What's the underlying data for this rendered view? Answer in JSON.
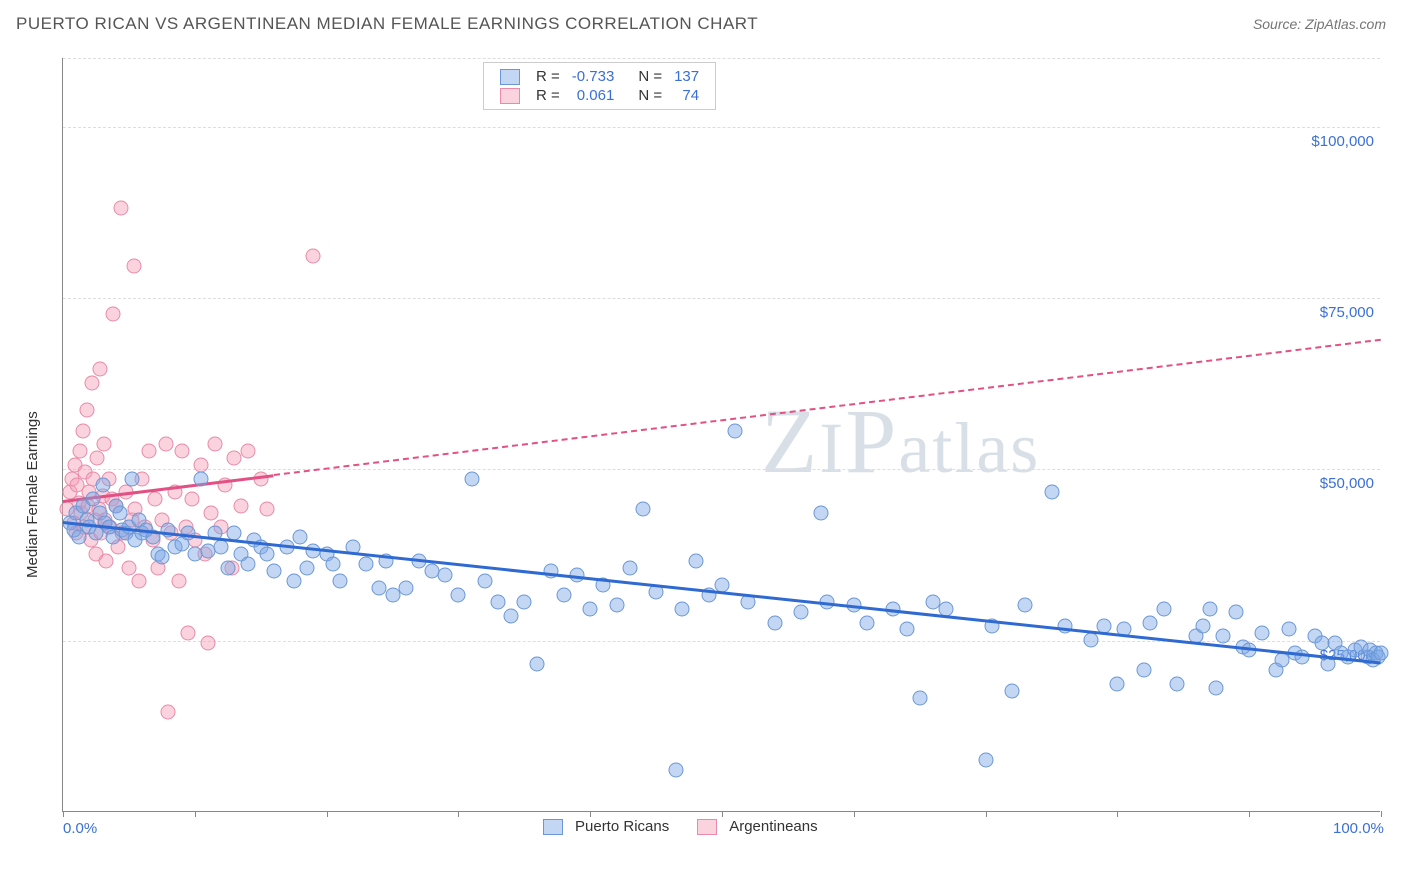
{
  "header": {
    "title": "PUERTO RICAN VS ARGENTINEAN MEDIAN FEMALE EARNINGS CORRELATION CHART",
    "source": "Source: ZipAtlas.com"
  },
  "watermark": {
    "text_parts": [
      "Z",
      "I",
      "P",
      "atlas"
    ]
  },
  "chart": {
    "type": "scatter",
    "y_axis_label": "Median Female Earnings",
    "xlim": [
      0,
      100
    ],
    "ylim": [
      0,
      110000
    ],
    "x_ticks": [
      0,
      10,
      20,
      30,
      40,
      50,
      60,
      70,
      80,
      90,
      100
    ],
    "x_tick_labels": {
      "0": "0.0%",
      "100": "100.0%"
    },
    "y_gridlines": [
      25000,
      50000,
      75000,
      100000,
      110000
    ],
    "y_tick_labels": {
      "25000": "$25,000",
      "50000": "$50,000",
      "75000": "$75,000",
      "100000": "$100,000"
    },
    "background_color": "#ffffff",
    "grid_color": "#dddddd",
    "axis_color": "#888888",
    "marker_radius": 7.5,
    "series": [
      {
        "name": "Puerto Ricans",
        "fill_color": "rgba(123, 167, 230, 0.45)",
        "stroke_color": "#6b97d4",
        "trend_color": "#2e6ad1",
        "R": "-0.733",
        "N": "137",
        "trend": {
          "x1": 0,
          "y1": 42500,
          "x2": 100,
          "y2": 22000,
          "solid_until_x": 100
        },
        "points": [
          [
            0.5,
            42000
          ],
          [
            0.8,
            41000
          ],
          [
            1.0,
            43500
          ],
          [
            1.2,
            40000
          ],
          [
            1.5,
            44500
          ],
          [
            1.8,
            42500
          ],
          [
            2.0,
            41500
          ],
          [
            2.3,
            45500
          ],
          [
            2.5,
            40500
          ],
          [
            2.8,
            43500
          ],
          [
            3.0,
            47500
          ],
          [
            3.2,
            42000
          ],
          [
            3.5,
            41500
          ],
          [
            3.8,
            40000
          ],
          [
            4.0,
            44500
          ],
          [
            4.3,
            43500
          ],
          [
            4.5,
            41000
          ],
          [
            4.8,
            40500
          ],
          [
            5.0,
            41500
          ],
          [
            5.2,
            48500
          ],
          [
            5.5,
            39500
          ],
          [
            5.8,
            42500
          ],
          [
            6.0,
            40500
          ],
          [
            6.3,
            41000
          ],
          [
            6.8,
            40000
          ],
          [
            7.2,
            37500
          ],
          [
            7.5,
            37000
          ],
          [
            8.0,
            41000
          ],
          [
            8.5,
            38500
          ],
          [
            9.0,
            39000
          ],
          [
            9.5,
            40500
          ],
          [
            10.0,
            37500
          ],
          [
            10.5,
            48500
          ],
          [
            11.0,
            38000
          ],
          [
            11.5,
            40500
          ],
          [
            12.0,
            38500
          ],
          [
            12.5,
            35500
          ],
          [
            13.0,
            40500
          ],
          [
            13.5,
            37500
          ],
          [
            14.0,
            36000
          ],
          [
            14.5,
            39500
          ],
          [
            15.0,
            38500
          ],
          [
            15.5,
            37500
          ],
          [
            16.0,
            35000
          ],
          [
            17.0,
            38500
          ],
          [
            17.5,
            33500
          ],
          [
            18.0,
            40000
          ],
          [
            18.5,
            35500
          ],
          [
            19.0,
            38000
          ],
          [
            20.0,
            37500
          ],
          [
            20.5,
            36000
          ],
          [
            21.0,
            33500
          ],
          [
            22.0,
            38500
          ],
          [
            23.0,
            36000
          ],
          [
            24.0,
            32500
          ],
          [
            24.5,
            36500
          ],
          [
            25.0,
            31500
          ],
          [
            26.0,
            32500
          ],
          [
            27.0,
            36500
          ],
          [
            28.0,
            35000
          ],
          [
            29.0,
            34500
          ],
          [
            30.0,
            31500
          ],
          [
            31.0,
            48500
          ],
          [
            32.0,
            33500
          ],
          [
            33.0,
            30500
          ],
          [
            34.0,
            28500
          ],
          [
            35.0,
            30500
          ],
          [
            36.0,
            21500
          ],
          [
            37.0,
            35000
          ],
          [
            38.0,
            31500
          ],
          [
            39.0,
            34500
          ],
          [
            40.0,
            29500
          ],
          [
            41.0,
            33000
          ],
          [
            42.0,
            30000
          ],
          [
            43.0,
            35500
          ],
          [
            44.0,
            44000
          ],
          [
            45.0,
            32000
          ],
          [
            46.5,
            6000
          ],
          [
            47.0,
            29500
          ],
          [
            48.0,
            36500
          ],
          [
            49.0,
            31500
          ],
          [
            50.0,
            33000
          ],
          [
            51.0,
            55500
          ],
          [
            52.0,
            30500
          ],
          [
            54.0,
            27500
          ],
          [
            56.0,
            29000
          ],
          [
            57.5,
            43500
          ],
          [
            58.0,
            30500
          ],
          [
            60.0,
            30000
          ],
          [
            61.0,
            27500
          ],
          [
            63.0,
            29500
          ],
          [
            64.0,
            26500
          ],
          [
            65.0,
            16500
          ],
          [
            66.0,
            30500
          ],
          [
            67.0,
            29500
          ],
          [
            70.0,
            7500
          ],
          [
            70.5,
            27000
          ],
          [
            72.0,
            17500
          ],
          [
            73.0,
            30000
          ],
          [
            75.0,
            46500
          ],
          [
            76.0,
            27000
          ],
          [
            78.0,
            25000
          ],
          [
            79.0,
            27000
          ],
          [
            80.0,
            18500
          ],
          [
            80.5,
            26500
          ],
          [
            82.0,
            20500
          ],
          [
            82.5,
            27500
          ],
          [
            83.5,
            29500
          ],
          [
            84.5,
            18500
          ],
          [
            86.0,
            25500
          ],
          [
            86.5,
            27000
          ],
          [
            87.0,
            29500
          ],
          [
            87.5,
            18000
          ],
          [
            88.0,
            25500
          ],
          [
            89.0,
            29000
          ],
          [
            89.5,
            24000
          ],
          [
            90.0,
            23500
          ],
          [
            91.0,
            26000
          ],
          [
            92.0,
            20500
          ],
          [
            92.5,
            22000
          ],
          [
            93.0,
            26500
          ],
          [
            93.5,
            23000
          ],
          [
            94.0,
            22500
          ],
          [
            95.0,
            25500
          ],
          [
            95.5,
            24500
          ],
          [
            96.0,
            21500
          ],
          [
            96.5,
            24500
          ],
          [
            97.0,
            23000
          ],
          [
            97.5,
            22500
          ],
          [
            98.0,
            23500
          ],
          [
            98.5,
            24000
          ],
          [
            99.0,
            22500
          ],
          [
            99.2,
            23500
          ],
          [
            99.4,
            22000
          ],
          [
            99.6,
            23000
          ],
          [
            99.8,
            22500
          ],
          [
            100.0,
            23000
          ]
        ]
      },
      {
        "name": "Argentineans",
        "fill_color": "rgba(243, 158, 185, 0.45)",
        "stroke_color": "#e88aa8",
        "trend_color": "#e25084",
        "R": "0.061",
        "N": "74",
        "trend": {
          "x1": 0,
          "y1": 45500,
          "x2": 100,
          "y2": 69000,
          "solid_until_x": 16
        },
        "points": [
          [
            0.3,
            44000
          ],
          [
            0.5,
            46500
          ],
          [
            0.7,
            48500
          ],
          [
            0.8,
            42000
          ],
          [
            0.9,
            50500
          ],
          [
            1.0,
            40500
          ],
          [
            1.1,
            47500
          ],
          [
            1.2,
            45000
          ],
          [
            1.3,
            52500
          ],
          [
            1.4,
            43500
          ],
          [
            1.5,
            55500
          ],
          [
            1.6,
            41500
          ],
          [
            1.7,
            49500
          ],
          [
            1.8,
            58500
          ],
          [
            1.9,
            44500
          ],
          [
            2.0,
            46500
          ],
          [
            2.1,
            39500
          ],
          [
            2.2,
            62500
          ],
          [
            2.3,
            48500
          ],
          [
            2.4,
            42500
          ],
          [
            2.5,
            37500
          ],
          [
            2.6,
            51500
          ],
          [
            2.7,
            44000
          ],
          [
            2.8,
            64500
          ],
          [
            2.9,
            40500
          ],
          [
            3.0,
            46000
          ],
          [
            3.1,
            53500
          ],
          [
            3.2,
            42500
          ],
          [
            3.3,
            36500
          ],
          [
            3.5,
            48500
          ],
          [
            3.6,
            41500
          ],
          [
            3.7,
            45500
          ],
          [
            3.8,
            72500
          ],
          [
            4.0,
            44500
          ],
          [
            4.2,
            38500
          ],
          [
            4.4,
            88000
          ],
          [
            4.5,
            40500
          ],
          [
            4.8,
            46500
          ],
          [
            5.0,
            35500
          ],
          [
            5.2,
            42500
          ],
          [
            5.4,
            79500
          ],
          [
            5.5,
            44000
          ],
          [
            5.8,
            33500
          ],
          [
            6.0,
            48500
          ],
          [
            6.2,
            41500
          ],
          [
            6.5,
            52500
          ],
          [
            6.8,
            39500
          ],
          [
            7.0,
            45500
          ],
          [
            7.2,
            35500
          ],
          [
            7.5,
            42500
          ],
          [
            7.8,
            53500
          ],
          [
            8.0,
            14500
          ],
          [
            8.2,
            40500
          ],
          [
            8.5,
            46500
          ],
          [
            8.8,
            33500
          ],
          [
            9.0,
            52500
          ],
          [
            9.3,
            41500
          ],
          [
            9.5,
            26000
          ],
          [
            9.8,
            45500
          ],
          [
            10.0,
            39500
          ],
          [
            10.5,
            50500
          ],
          [
            10.8,
            37500
          ],
          [
            11.0,
            24500
          ],
          [
            11.2,
            43500
          ],
          [
            11.5,
            53500
          ],
          [
            12.0,
            41500
          ],
          [
            12.3,
            47500
          ],
          [
            12.8,
            35500
          ],
          [
            13.0,
            51500
          ],
          [
            13.5,
            44500
          ],
          [
            14.0,
            52500
          ],
          [
            15.0,
            48500
          ],
          [
            15.5,
            44000
          ],
          [
            19.0,
            81000
          ]
        ]
      }
    ],
    "legend_top": {
      "rows": [
        {
          "swatch_fill": "rgba(123, 167, 230, 0.45)",
          "swatch_stroke": "#6b97d4",
          "r_label": "R =",
          "r_value": "-0.733",
          "n_label": "N =",
          "n_value": "137"
        },
        {
          "swatch_fill": "rgba(243, 158, 185, 0.45)",
          "swatch_stroke": "#e88aa8",
          "r_label": "R =",
          "r_value": "0.061",
          "n_label": "N =",
          "n_value": "74"
        }
      ]
    },
    "legend_bottom": [
      {
        "swatch_fill": "rgba(123, 167, 230, 0.45)",
        "swatch_stroke": "#6b97d4",
        "label": "Puerto Ricans"
      },
      {
        "swatch_fill": "rgba(243, 158, 185, 0.45)",
        "swatch_stroke": "#e88aa8",
        "label": "Argentineans"
      }
    ]
  }
}
